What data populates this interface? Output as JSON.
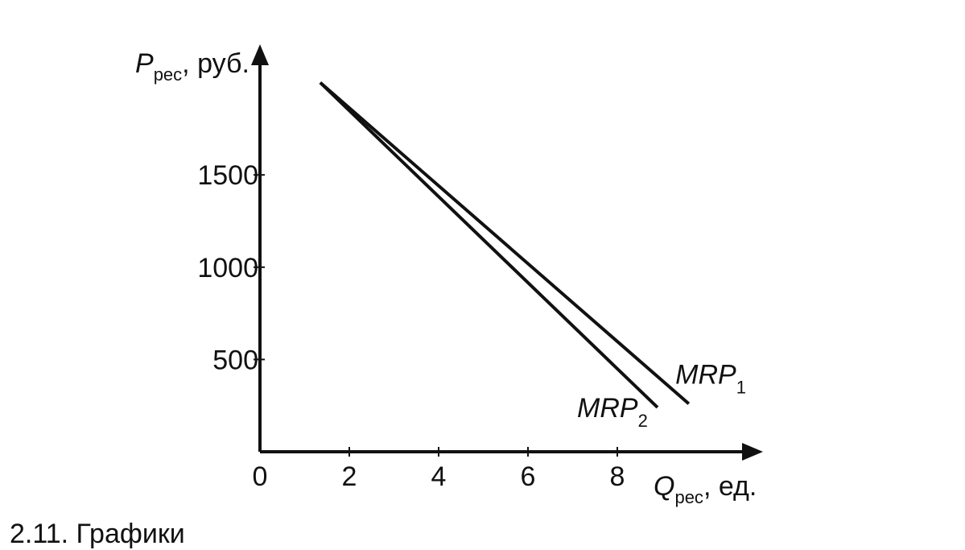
{
  "chart_data": {
    "type": "line",
    "title": "",
    "xlabel": {
      "main": "Q",
      "sub": "рес",
      "rest": ", ед."
    },
    "ylabel": {
      "main": "P",
      "sub": "рес",
      "rest": ", руб."
    },
    "xlim": [
      0,
      11.5
    ],
    "ylim": [
      0,
      2050
    ],
    "x_ticks": [
      {
        "value": 0,
        "label": "0"
      },
      {
        "value": 2,
        "label": "2"
      },
      {
        "value": 4,
        "label": "4"
      },
      {
        "value": 6,
        "label": "6"
      },
      {
        "value": 8,
        "label": "8"
      }
    ],
    "y_ticks": [
      {
        "value": 500,
        "label": "500"
      },
      {
        "value": 1000,
        "label": "1000"
      },
      {
        "value": 1500,
        "label": "1500"
      }
    ],
    "series": [
      {
        "name": "MRP",
        "subscript": "1",
        "x": [
          1.35,
          9.6
        ],
        "y": [
          2000,
          260
        ],
        "label_at": {
          "x": 9.3,
          "y": 420
        }
      },
      {
        "name": "MRP",
        "subscript": "2",
        "x": [
          1.35,
          8.9
        ],
        "y": [
          2000,
          240
        ],
        "label_at": {
          "x": 7.1,
          "y": 240
        }
      }
    ],
    "grid": false,
    "legend": "none"
  },
  "caption": "2.11. Графики"
}
